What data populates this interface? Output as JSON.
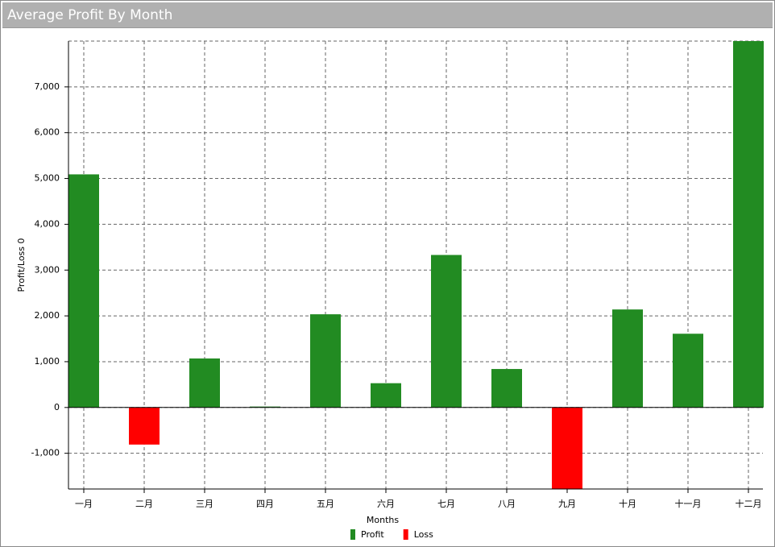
{
  "chart_data": {
    "type": "bar",
    "title": "Average Profit By Month",
    "x_label": "Months",
    "y_label": "Profit/Loss 0",
    "categories": [
      "一月",
      "二月",
      "三月",
      "四月",
      "五月",
      "六月",
      "七月",
      "八月",
      "九月",
      "十月",
      "十一月",
      "十二月"
    ],
    "series": [
      {
        "name": "Profit",
        "color": "#228b22",
        "values": [
          5090,
          null,
          1070,
          20,
          2035,
          530,
          3330,
          840,
          null,
          2140,
          1610,
          8000
        ]
      },
      {
        "name": "Loss",
        "color": "#ff0000",
        "values": [
          null,
          -810,
          null,
          null,
          null,
          null,
          null,
          null,
          -1780,
          null,
          null,
          null
        ]
      }
    ],
    "ylim": [
      -1780,
      8000
    ],
    "yticks": [
      {
        "value": -1000,
        "label": "-1,000"
      },
      0,
      {
        "value": 1000,
        "label": "1,000"
      },
      {
        "value": 2000,
        "label": "2,000"
      },
      {
        "value": 3000,
        "label": "3,000"
      },
      {
        "value": 4000,
        "label": "4,000"
      },
      {
        "value": 5000,
        "label": "5,000"
      },
      {
        "value": 6000,
        "label": "6,000"
      },
      {
        "value": 7000,
        "label": "7,000"
      }
    ],
    "grid": true
  }
}
